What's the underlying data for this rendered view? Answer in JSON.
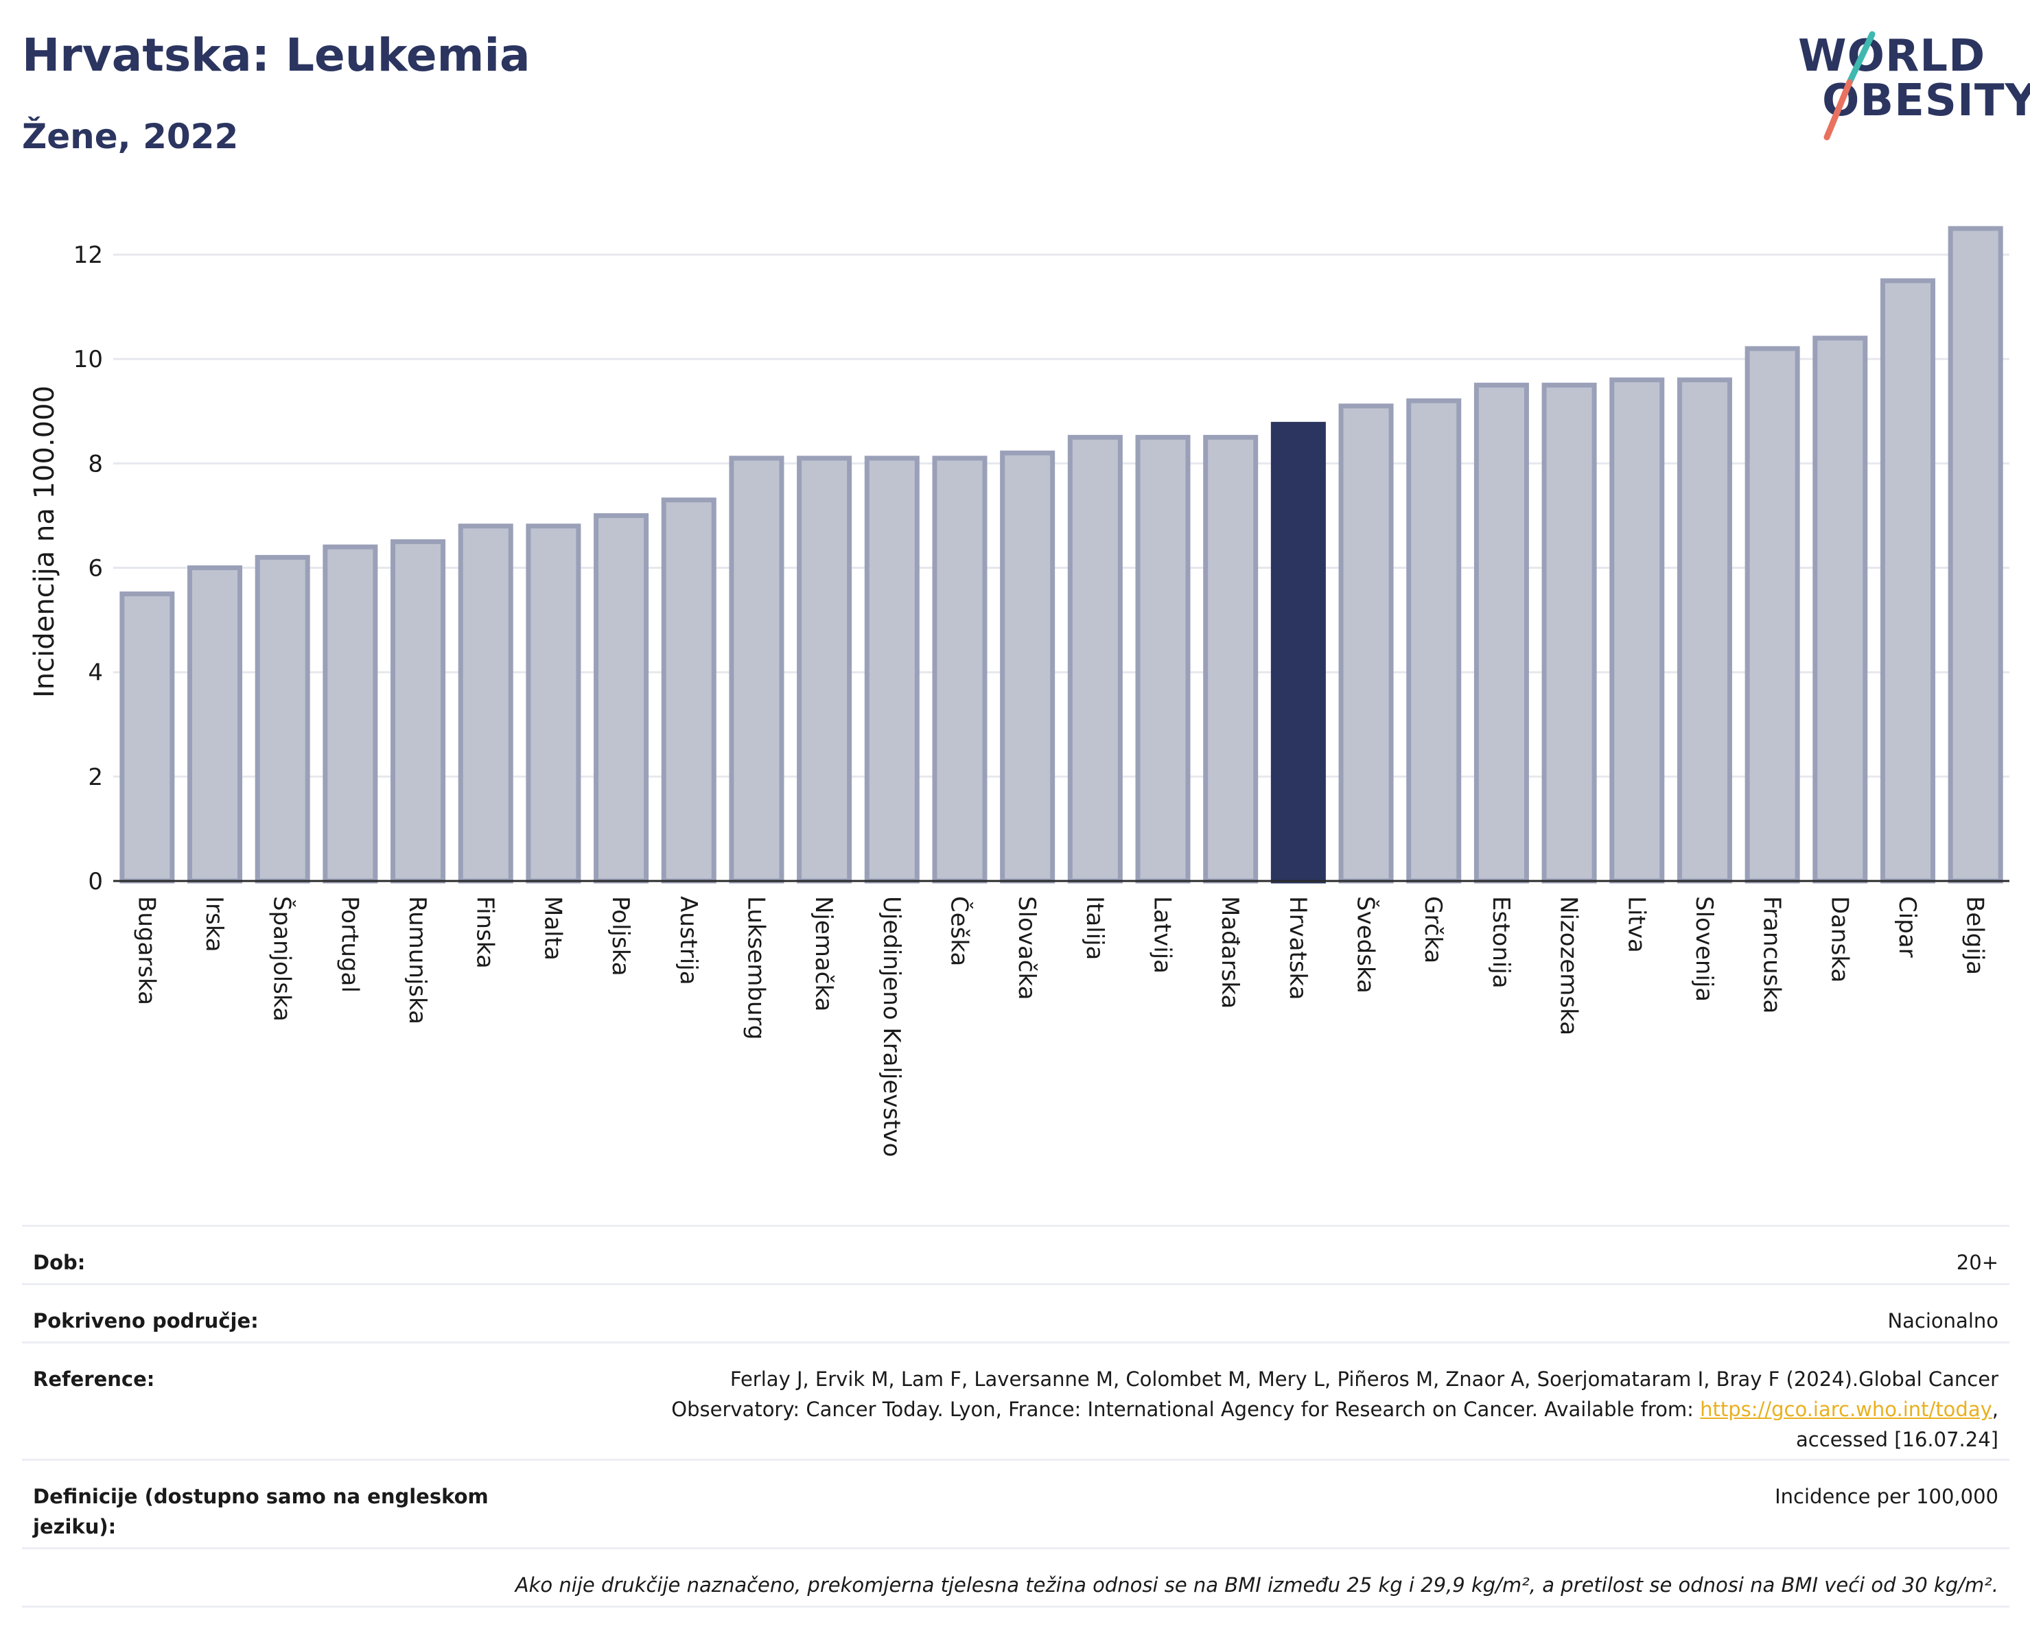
{
  "header": {
    "title": "Hrvatska: Leukemia",
    "subtitle": "Žene, 2022"
  },
  "logo": {
    "line1": "WORLD",
    "line2": "OBESITY",
    "accent_teal": "#3fb8b0",
    "accent_coral": "#e8725f"
  },
  "chart_data": {
    "type": "bar",
    "ylabel": "Incidencija na 100.000",
    "xlabel": "",
    "ylim": [
      0,
      13
    ],
    "yticks": [
      0,
      2,
      4,
      6,
      8,
      10,
      12
    ],
    "grid": true,
    "highlight": "Hrvatska",
    "colors": {
      "bar": "#bfc3d0",
      "bar_border": "#9aa0b8",
      "highlight": "#2b3560"
    },
    "categories": [
      "Bugarska",
      "Irska",
      "Španjolska",
      "Portugal",
      "Rumunjska",
      "Finska",
      "Malta",
      "Poljska",
      "Austrija",
      "Luksemburg",
      "Njemačka",
      "Ujedinjeno Kraljevstvo",
      "Češka",
      "Slovačka",
      "Italija",
      "Latvija",
      "Mađarska",
      "Hrvatska",
      "Švedska",
      "Grčka",
      "Estonija",
      "Nizozemska",
      "Litva",
      "Slovenija",
      "Francuska",
      "Danska",
      "Cipar",
      "Belgija"
    ],
    "values": [
      5.5,
      6.0,
      6.2,
      6.4,
      6.5,
      6.8,
      6.8,
      7.0,
      7.3,
      8.1,
      8.1,
      8.1,
      8.1,
      8.2,
      8.5,
      8.5,
      8.5,
      8.75,
      9.1,
      9.2,
      9.5,
      9.5,
      9.6,
      9.6,
      10.2,
      10.4,
      11.5,
      12.5
    ]
  },
  "info": {
    "dob_label": "Dob:",
    "dob_value": "20+",
    "area_label": "Pokriveno područje:",
    "area_value": "Nacionalno",
    "ref_label": "Reference:",
    "ref_text1": "Ferlay J, Ervik M, Lam F, Laversanne M, Colombet M, Mery L, Piñeros M, Znaor A, Soerjomataram I, Bray F (2024).Global Cancer",
    "ref_text2": "Observatory: Cancer Today. Lyon, France: International Agency for Research on Cancer. Available from: ",
    "ref_link": "https://gco.iarc.who.int/today",
    "ref_text3": ",",
    "ref_text4": "accessed [16.07.24]",
    "def_label": "Definicije (dostupno samo na engleskom jeziku):",
    "def_value": "Incidence per 100,000",
    "note": "Ako nije drukčije naznačeno, prekomjerna tjelesna težina odnosi se na BMI između 25 kg i 29,9 kg/m², a pretilost se odnosi na BMI veći od 30 kg/m²."
  }
}
